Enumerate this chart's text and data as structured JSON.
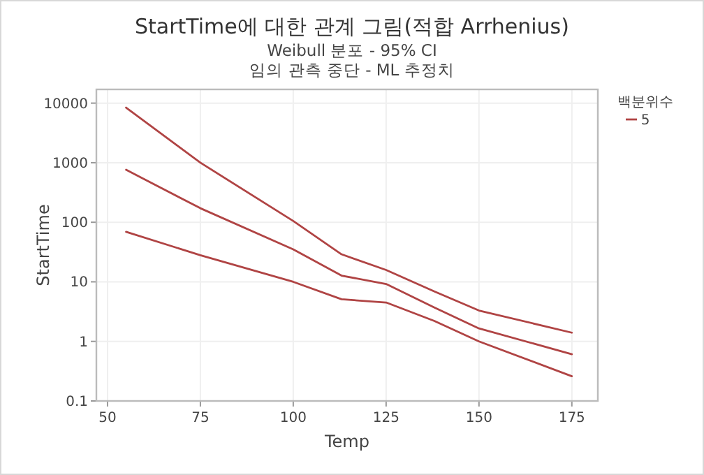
{
  "chart_data": {
    "type": "line",
    "title": "StartTime에 대한 관계 그림(적합 Arrhenius)",
    "subtitle": "Weibull 분포 - 95% CI\n임의 관측 중단 - ML 추정치",
    "xlabel": "Temp",
    "ylabel": "StartTime",
    "legend_title": "백분위수",
    "legend": "right",
    "grid": true,
    "log": "y",
    "xlim": [
      47,
      182
    ],
    "ylim": [
      0.1,
      17000
    ],
    "xticks": [
      50,
      75,
      100,
      125,
      150,
      175
    ],
    "yticks": [
      0.1,
      1,
      10,
      100,
      1000,
      10000
    ],
    "series": [
      {
        "color": "#b04444",
        "x": [
          55,
          75,
          100,
          113,
          125,
          138,
          150,
          175
        ],
        "values": [
          8400,
          1000,
          105,
          29,
          15.8,
          6.9,
          3.3,
          1.4
        ]
      },
      {
        "name": "5",
        "color": "#b04444",
        "x": [
          55,
          75,
          100,
          113,
          125,
          138,
          150,
          175
        ],
        "values": [
          760,
          172,
          35,
          12.7,
          9.2,
          3.7,
          1.65,
          0.61
        ]
      },
      {
        "color": "#b04444",
        "x": [
          55,
          75,
          100,
          113,
          125,
          138,
          150,
          175
        ],
        "values": [
          69,
          28,
          10,
          5.1,
          4.5,
          2.2,
          1,
          0.26
        ]
      }
    ]
  }
}
